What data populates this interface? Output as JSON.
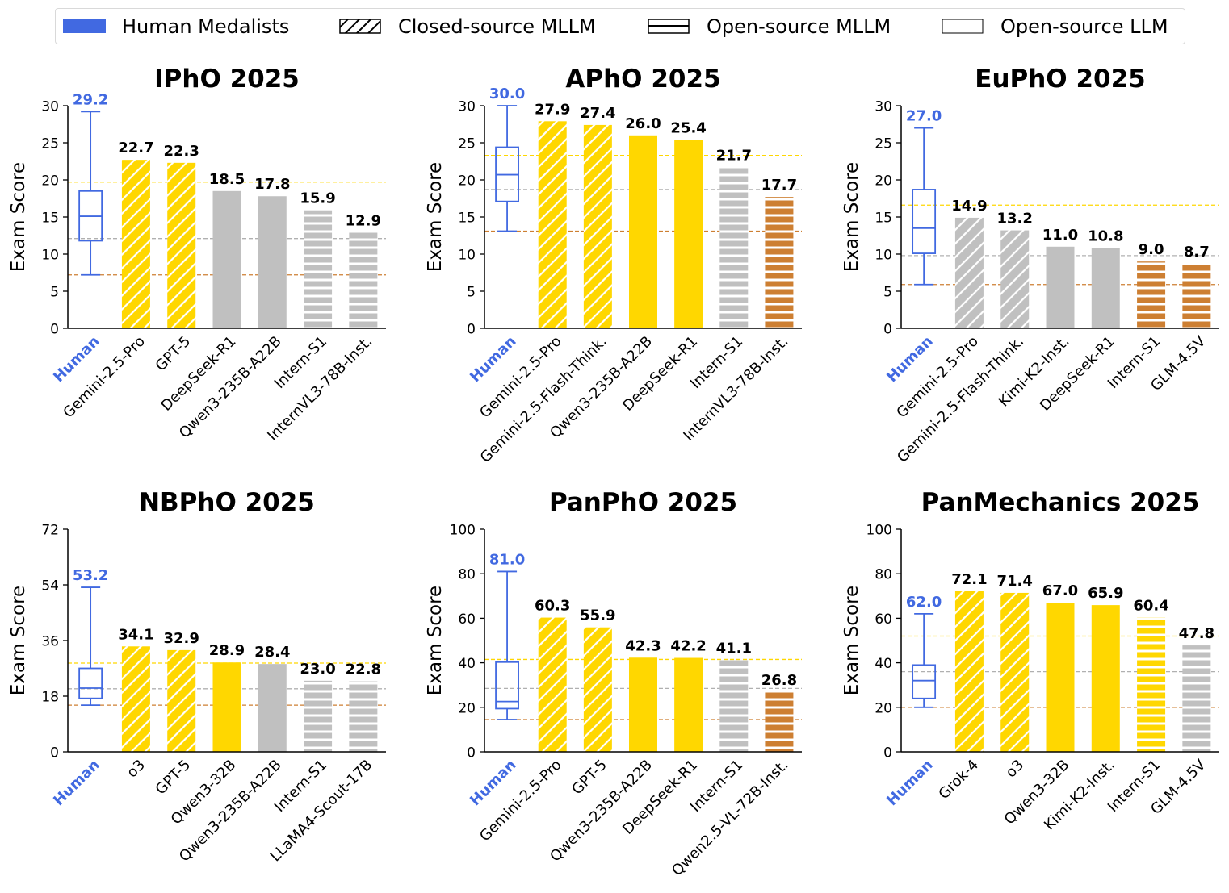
{
  "legend": {
    "items": [
      {
        "label": "Human Medalists",
        "style": "human"
      },
      {
        "label": "Closed-source MLLM",
        "style": "hatch-diag"
      },
      {
        "label": "Open-source MLLM",
        "style": "hatch-horiz"
      },
      {
        "label": "Open-source LLM",
        "style": "plain"
      }
    ]
  },
  "colors": {
    "human": "#4169E1",
    "gold": "#FFD700",
    "silver": "#C0C0C0",
    "bronze": "#CD7F32",
    "gold_line": "#FFD700",
    "silver_line": "#B0B0B0",
    "bronze_line": "#CD7F32"
  },
  "shared_ylabel": "Exam Score",
  "human_label": "Human",
  "chart_data": [
    {
      "type": "bar",
      "title": "IPhO 2025",
      "ylabel": "Exam Score",
      "ylim": [
        0,
        30
      ],
      "yticks": [
        0,
        5,
        10,
        15,
        20,
        25,
        30
      ],
      "thresholds": {
        "gold": 19.7,
        "silver": 12.1,
        "bronze": 7.2
      },
      "human": {
        "max": 29.2,
        "q3": 18.5,
        "median": 15.1,
        "q1": 11.8,
        "min": 7.2
      },
      "human_max_label": "29.2",
      "categories": [
        "Gemini-2.5-Pro",
        "GPT-5",
        "DeepSeek-R1",
        "Qwen3-235B-A22B",
        "Intern-S1",
        "InternVL3-78B-Inst."
      ],
      "values": [
        22.7,
        22.3,
        18.5,
        17.8,
        15.9,
        12.9
      ],
      "value_labels": [
        "22.7",
        "22.3",
        "18.5",
        "17.8",
        "15.9",
        "12.9"
      ],
      "medal": [
        "gold",
        "gold",
        "silver",
        "silver",
        "silver",
        "silver"
      ],
      "model_type": [
        "closed",
        "closed",
        "llm",
        "llm",
        "mllm",
        "mllm"
      ]
    },
    {
      "type": "bar",
      "title": "APhO 2025",
      "ylabel": "Exam Score",
      "ylim": [
        0,
        30
      ],
      "yticks": [
        0,
        5,
        10,
        15,
        20,
        25,
        30
      ],
      "thresholds": {
        "gold": 23.3,
        "silver": 18.7,
        "bronze": 13.1
      },
      "human": {
        "max": 30.0,
        "q3": 24.4,
        "median": 20.7,
        "q1": 17.1,
        "min": 13.1
      },
      "human_max_label": "30.0",
      "categories": [
        "Gemini-2.5-Pro",
        "Gemini-2.5-Flash-Think.",
        "Qwen3-235B-A22B",
        "DeepSeek-R1",
        "Intern-S1",
        "InternVL3-78B-Inst."
      ],
      "values": [
        27.9,
        27.4,
        26.0,
        25.4,
        21.7,
        17.7
      ],
      "value_labels": [
        "27.9",
        "27.4",
        "26.0",
        "25.4",
        "21.7",
        "17.7"
      ],
      "medal": [
        "gold",
        "gold",
        "gold",
        "gold",
        "silver",
        "bronze"
      ],
      "model_type": [
        "closed",
        "closed",
        "llm",
        "llm",
        "mllm",
        "mllm"
      ]
    },
    {
      "type": "bar",
      "title": "EuPhO 2025",
      "ylabel": "Exam Score",
      "ylim": [
        0,
        30
      ],
      "yticks": [
        0,
        5,
        10,
        15,
        20,
        25,
        30
      ],
      "thresholds": {
        "gold": 16.6,
        "silver": 9.8,
        "bronze": 5.9
      },
      "human": {
        "max": 27.0,
        "q3": 18.7,
        "median": 13.5,
        "q1": 10.1,
        "min": 5.9
      },
      "human_max_label": "27.0",
      "categories": [
        "Gemini-2.5-Pro",
        "Gemini-2.5-Flash-Think.",
        "Kimi-K2-Inst.",
        "DeepSeek-R1",
        "Intern-S1",
        "GLM-4.5V"
      ],
      "values": [
        14.9,
        13.2,
        11.0,
        10.8,
        9.0,
        8.7
      ],
      "value_labels": [
        "14.9",
        "13.2",
        "11.0",
        "10.8",
        "9.0",
        "8.7"
      ],
      "medal": [
        "silver",
        "silver",
        "silver",
        "silver",
        "bronze",
        "bronze"
      ],
      "model_type": [
        "closed",
        "closed",
        "llm",
        "llm",
        "mllm",
        "mllm"
      ]
    },
    {
      "type": "bar",
      "title": "NBPhO 2025",
      "ylabel": "Exam Score",
      "ylim": [
        0,
        72
      ],
      "yticks": [
        0,
        18,
        36,
        54,
        72
      ],
      "thresholds": {
        "gold": 28.7,
        "silver": 20.4,
        "bronze": 15.1
      },
      "human": {
        "max": 53.2,
        "q3": 27.0,
        "median": 20.6,
        "q1": 17.3,
        "min": 15.1
      },
      "human_max_label": "53.2",
      "categories": [
        "o3",
        "GPT-5",
        "Qwen3-32B",
        "Qwen3-235B-A22B",
        "Intern-S1",
        "LLaMA4-Scout-17B"
      ],
      "values": [
        34.1,
        32.9,
        28.9,
        28.4,
        23.0,
        22.8
      ],
      "value_labels": [
        "34.1",
        "32.9",
        "28.9",
        "28.4",
        "23.0",
        "22.8"
      ],
      "medal": [
        "gold",
        "gold",
        "gold",
        "silver",
        "silver",
        "silver"
      ],
      "model_type": [
        "closed",
        "closed",
        "llm",
        "llm",
        "mllm",
        "mllm"
      ]
    },
    {
      "type": "bar",
      "title": "PanPhO 2025",
      "ylabel": "Exam Score",
      "ylim": [
        0,
        100
      ],
      "yticks": [
        0,
        20,
        40,
        60,
        80,
        100
      ],
      "thresholds": {
        "gold": 41.5,
        "silver": 28.5,
        "bronze": 14.5
      },
      "human": {
        "max": 81.0,
        "q3": 40.3,
        "median": 22.6,
        "q1": 19.4,
        "min": 14.5
      },
      "human_max_label": "81.0",
      "categories": [
        "Gemini-2.5-Pro",
        "GPT-5",
        "Qwen3-235B-A22B",
        "DeepSeek-R1",
        "Intern-S1",
        "Qwen2.5-VL-72B-Inst."
      ],
      "values": [
        60.3,
        55.9,
        42.3,
        42.2,
        41.1,
        26.8
      ],
      "value_labels": [
        "60.3",
        "55.9",
        "42.3",
        "42.2",
        "41.1",
        "26.8"
      ],
      "medal": [
        "gold",
        "gold",
        "gold",
        "gold",
        "silver",
        "bronze"
      ],
      "model_type": [
        "closed",
        "closed",
        "llm",
        "llm",
        "mllm",
        "mllm"
      ]
    },
    {
      "type": "bar",
      "title": "PanMechanics 2025",
      "ylabel": "Exam Score",
      "ylim": [
        0,
        100
      ],
      "yticks": [
        0,
        20,
        40,
        60,
        80,
        100
      ],
      "thresholds": {
        "gold": 52.0,
        "silver": 36.0,
        "bronze": 20.0
      },
      "human": {
        "max": 62.0,
        "q3": 39.0,
        "median": 32.0,
        "q1": 24.0,
        "min": 20.0
      },
      "human_max_label": "62.0",
      "categories": [
        "Grok-4",
        "o3",
        "Qwen3-32B",
        "Kimi-K2-Inst.",
        "Intern-S1",
        "GLM-4.5V"
      ],
      "values": [
        72.1,
        71.4,
        67.0,
        65.9,
        60.4,
        47.8
      ],
      "value_labels": [
        "72.1",
        "71.4",
        "67.0",
        "65.9",
        "60.4",
        "47.8"
      ],
      "medal": [
        "gold",
        "gold",
        "gold",
        "gold",
        "gold",
        "silver"
      ],
      "model_type": [
        "closed",
        "closed",
        "llm",
        "llm",
        "mllm",
        "mllm"
      ]
    }
  ]
}
